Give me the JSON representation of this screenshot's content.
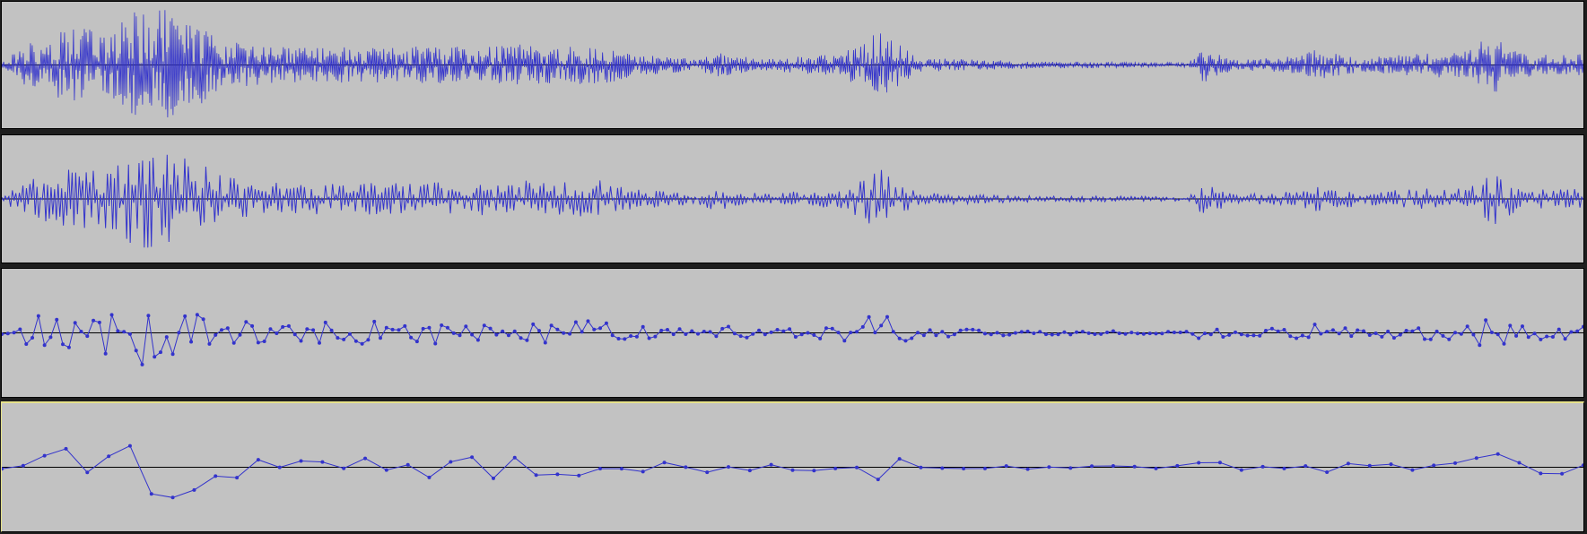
{
  "colors": {
    "waveform": "#3333cc",
    "baseline": "#000000",
    "track_background": "#c2c2c2",
    "selection_border": "#e6e28a",
    "app_background": "#1e1e1e"
  },
  "tracks": [
    {
      "id": "track-1",
      "view": "waveform",
      "zoom_level": "overview",
      "sample_dots": false,
      "selected": false
    },
    {
      "id": "track-2",
      "view": "waveform",
      "zoom_level": "medium",
      "sample_dots": false,
      "selected": false
    },
    {
      "id": "track-3",
      "view": "waveform",
      "zoom_level": "close",
      "sample_dots": true,
      "selected": false
    },
    {
      "id": "track-4",
      "view": "waveform",
      "zoom_level": "closest",
      "sample_dots": true,
      "selected": true
    }
  ]
}
